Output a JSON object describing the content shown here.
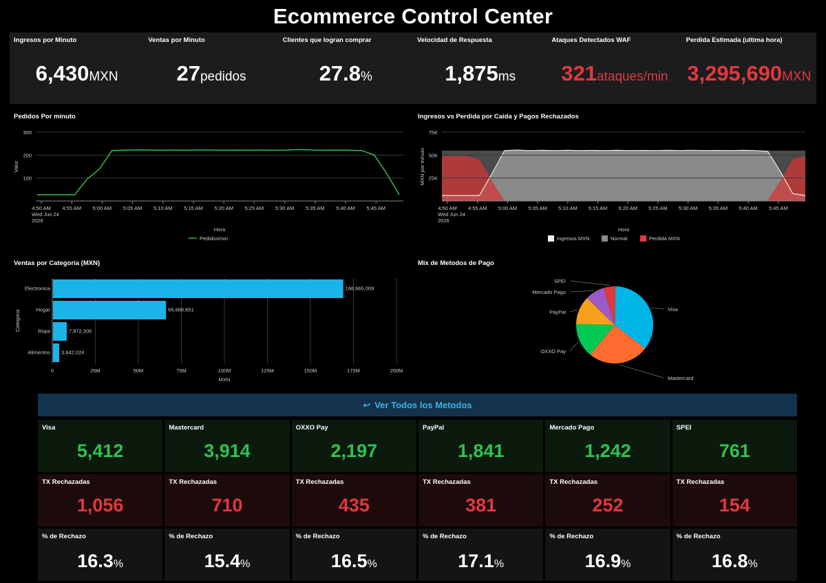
{
  "title": "Ecommerce Control Center",
  "kpis": [
    {
      "label": "Ingresos por Minuto",
      "value": "6,430",
      "unit": "MXN",
      "alert": false
    },
    {
      "label": "Ventas por Minuto",
      "value": "27",
      "unit": "pedidos",
      "alert": false
    },
    {
      "label": "Clientes que logran comprar",
      "value": "27.8",
      "unit": "%",
      "alert": false
    },
    {
      "label": "Velocidad de Respuesta",
      "value": "1,875",
      "unit": "ms",
      "alert": false
    },
    {
      "label": "Ataques Detectados WAF",
      "value": "321",
      "unit": "ataques/min",
      "alert": true
    },
    {
      "label": "Perdida Estimada (ultima hora)",
      "value": "3,295,690",
      "unit": "MXN",
      "alert": true
    }
  ],
  "colors": {
    "green": "#2fc151",
    "red": "#e0393e",
    "blue": "#1bb4e8",
    "banner": "#13324b"
  },
  "pedidos_chart": {
    "title": "Pedidos Por minuto",
    "ylabel": "Valor",
    "xlabel": "Hora",
    "yticks": [
      "100",
      "200",
      "300"
    ],
    "xticks": [
      "4:50 AM",
      "4:55 AM",
      "5:00 AM",
      "5:05 AM",
      "5:10 AM",
      "5:15 AM",
      "5:20 AM",
      "5:25 AM",
      "5:30 AM",
      "5:35 AM",
      "5:40 AM",
      "5:45 AM"
    ],
    "date_line1": "Wed Jun 24",
    "date_line2": "2026",
    "legend": "Pedidos/min"
  },
  "ingresos_chart": {
    "title": "Ingresos vs Perdida por Caida y Pagos Rechazados",
    "ylabel": "MXN por minuto",
    "xlabel": "Hora",
    "yticks": [
      "25K",
      "50K",
      "75K"
    ],
    "xticks": [
      "4:50 AM",
      "4:55 AM",
      "5:00 AM",
      "5:05 AM",
      "5:10 AM",
      "5:15 AM",
      "5:20 AM",
      "5:25 AM",
      "5:30 AM",
      "5:35 AM",
      "5:40 AM",
      "5:45 AM"
    ],
    "date_line1": "Wed Jun 24",
    "date_line2": "2026",
    "legend": [
      "Ingresos MXN",
      "Normal",
      "Perdida MXN"
    ]
  },
  "categorias_chart": {
    "title": "Ventas por Categoria (MXN)",
    "ylabel": "Categoria",
    "xlabel": "MXN",
    "xticks": [
      "0",
      "25M",
      "50M",
      "75M",
      "100M",
      "125M",
      "150M",
      "175M",
      "200M"
    ]
  },
  "metodos_chart": {
    "title": "Mix de Metodos de Pago"
  },
  "chart_data": [
    {
      "type": "line",
      "x": [
        "4:50",
        "4:52",
        "4:54",
        "4:56",
        "4:58",
        "5:00",
        "5:02",
        "5:04",
        "5:06",
        "5:08",
        "5:10",
        "5:12",
        "5:14",
        "5:16",
        "5:18",
        "5:20",
        "5:22",
        "5:24",
        "5:26",
        "5:28",
        "5:30",
        "5:32",
        "5:34",
        "5:36",
        "5:38",
        "5:40",
        "5:42",
        "5:44",
        "5:46",
        "5:48"
      ],
      "series": [
        {
          "name": "Pedidos/min",
          "values": [
            27,
            27,
            27,
            27,
            95,
            140,
            220,
            221,
            223,
            222,
            221,
            222,
            221,
            223,
            222,
            221,
            222,
            221,
            222,
            221,
            222,
            224,
            222,
            221,
            222,
            221,
            220,
            200,
            120,
            27
          ]
        }
      ],
      "ylim": [
        0,
        300
      ]
    },
    {
      "type": "area",
      "x": [
        "4:50",
        "4:52",
        "4:54",
        "4:56",
        "4:58",
        "5:00",
        "5:02",
        "5:04",
        "5:06",
        "5:08",
        "5:10",
        "5:12",
        "5:14",
        "5:16",
        "5:18",
        "5:20",
        "5:22",
        "5:24",
        "5:26",
        "5:28",
        "5:30",
        "5:32",
        "5:34",
        "5:36",
        "5:38",
        "5:40",
        "5:42",
        "5:44",
        "5:46",
        "5:48"
      ],
      "series": [
        {
          "name": "Ingresos MXN",
          "values": [
            6000,
            6000,
            6000,
            6000,
            30000,
            55000,
            55500,
            55000,
            55200,
            55000,
            55300,
            55000,
            55100,
            55000,
            55200,
            55000,
            55100,
            55000,
            55200,
            55000,
            55300,
            55000,
            55100,
            55000,
            55200,
            55000,
            54000,
            32000,
            8000,
            6000
          ]
        },
        {
          "name": "Normal",
          "values": [
            55000,
            55000,
            55000,
            55000,
            55000,
            55000,
            55000,
            55000,
            55000,
            55000,
            55000,
            55000,
            55000,
            55000,
            55000,
            55000,
            55000,
            55000,
            55000,
            55000,
            55000,
            55000,
            55000,
            55000,
            55000,
            55000,
            55000,
            55000,
            55000,
            55000
          ]
        },
        {
          "name": "Perdida MXN",
          "values": [
            49000,
            49000,
            49000,
            45000,
            22000,
            0,
            0,
            0,
            0,
            0,
            0,
            0,
            0,
            0,
            0,
            0,
            0,
            0,
            0,
            0,
            0,
            0,
            0,
            0,
            0,
            0,
            1000,
            22000,
            46000,
            49000
          ]
        }
      ],
      "ylim": [
        0,
        75000
      ]
    },
    {
      "type": "bar",
      "categories": [
        "Electronica",
        "Hogar",
        "Ropa",
        "Alimentos"
      ],
      "values": [
        168665009,
        65686651,
        7972300,
        3642024
      ],
      "labels": [
        "168,665,009",
        "65,686,651",
        "7,972,300",
        "3,642,024"
      ],
      "xlim": [
        0,
        200000000
      ]
    },
    {
      "type": "pie",
      "categories": [
        "Visa",
        "Mastercard",
        "OXXO Pay",
        "PayPal",
        "Mercado Pago",
        "SPEI"
      ],
      "values": [
        5412,
        3914,
        2197,
        1841,
        1242,
        761
      ],
      "colors": [
        "#00b4e6",
        "#ff6b2e",
        "#00c853",
        "#f5a11a",
        "#9b59c9",
        "#e0393e"
      ]
    }
  ],
  "banner": {
    "icon": "↩",
    "label": "Ver Todos los Metodos"
  },
  "metodos": [
    {
      "name": "Visa",
      "tx": "5,412",
      "rechazadas": "1,056",
      "pct": "16.3"
    },
    {
      "name": "Mastercard",
      "tx": "3,914",
      "rechazadas": "710",
      "pct": "15.4"
    },
    {
      "name": "OXXO Pay",
      "tx": "2,197",
      "rechazadas": "435",
      "pct": "16.5"
    },
    {
      "name": "PayPal",
      "tx": "1,841",
      "rechazadas": "381",
      "pct": "17.1"
    },
    {
      "name": "Mercado Pago",
      "tx": "1,242",
      "rechazadas": "252",
      "pct": "16.9"
    },
    {
      "name": "SPEI",
      "tx": "761",
      "rechazadas": "154",
      "pct": "16.8"
    }
  ],
  "labels": {
    "rechazadas": "TX Rechazadas",
    "pct": "% de Rechazo",
    "pct_unit": "%"
  }
}
